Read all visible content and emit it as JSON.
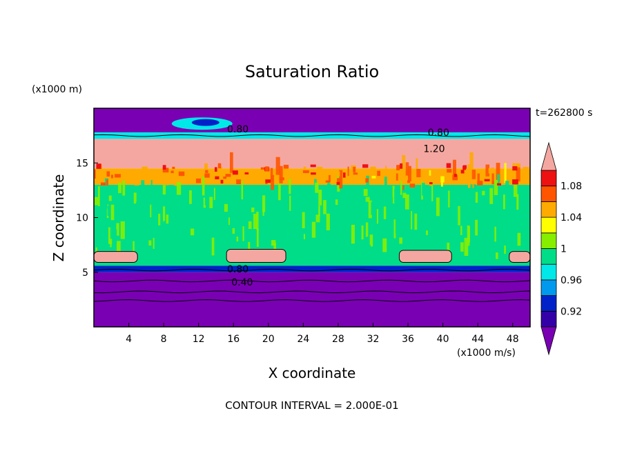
{
  "chart_data": {
    "type": "heatmap",
    "title": "Saturation Ratio",
    "xlabel": "X coordinate",
    "ylabel": "Z coordinate",
    "x_units": "(x1000 m/s)",
    "y_units": "(x1000 m)",
    "time_label": "t=262800 s",
    "footer": "CONTOUR INTERVAL = 2.000E-01",
    "xlim": [
      0,
      50
    ],
    "ylim": [
      0,
      20
    ],
    "x_ticks": [
      4,
      8,
      12,
      16,
      20,
      24,
      28,
      32,
      36,
      40,
      44,
      48
    ],
    "y_ticks": [
      5,
      10,
      15
    ],
    "colorbar": {
      "levels": [
        0.9,
        0.92,
        0.94,
        0.96,
        0.98,
        1.0,
        1.02,
        1.04,
        1.06,
        1.08,
        1.1
      ],
      "labels": [
        "0.92",
        "0.96",
        "1",
        "1.04",
        "1.08"
      ],
      "label_values": [
        0.92,
        0.96,
        1.0,
        1.04,
        1.08
      ],
      "colors": [
        "#7a00b4",
        "#3300a8",
        "#0022c8",
        "#0099ee",
        "#00e8e8",
        "#00dd88",
        "#88ee00",
        "#ffff00",
        "#ffaa00",
        "#ff5500",
        "#ee1111",
        "#f4a7a0"
      ]
    },
    "bands": [
      {
        "z0": 0.0,
        "z1": 5.0,
        "value": 0.85
      },
      {
        "z0": 5.0,
        "z1": 5.6,
        "value": 0.93
      },
      {
        "z0": 5.6,
        "z1": 13.0,
        "value": 0.99
      },
      {
        "z0": 13.0,
        "z1": 14.5,
        "value": 1.05
      },
      {
        "z0": 14.5,
        "z1": 17.2,
        "value": 1.15
      },
      {
        "z0": 17.2,
        "z1": 17.8,
        "value": 0.96
      },
      {
        "z0": 17.8,
        "z1": 20.0,
        "value": 0.85
      }
    ],
    "high_patches": [
      {
        "x0": 0.0,
        "x1": 5.0,
        "z0": 5.9,
        "z1": 6.9
      },
      {
        "x0": 15.2,
        "x1": 22.0,
        "z0": 5.9,
        "z1": 7.1
      },
      {
        "x0": 35.0,
        "x1": 41.0,
        "z0": 5.9,
        "z1": 7.0
      },
      {
        "x0": 47.6,
        "x1": 50.0,
        "z0": 5.9,
        "z1": 6.9
      }
    ],
    "contour_labels": [
      {
        "text": "0.80",
        "x": 16.5,
        "z": 18.1
      },
      {
        "text": "0.80",
        "x": 39.5,
        "z": 17.8
      },
      {
        "text": "1.20",
        "x": 39.0,
        "z": 16.3
      },
      {
        "text": "0.80",
        "x": 16.5,
        "z": 5.3
      },
      {
        "text": "0.40",
        "x": 17.0,
        "z": 4.1
      }
    ],
    "horizontal_contours": [
      4.2,
      3.2,
      2.4,
      5.2,
      17.5
    ]
  }
}
